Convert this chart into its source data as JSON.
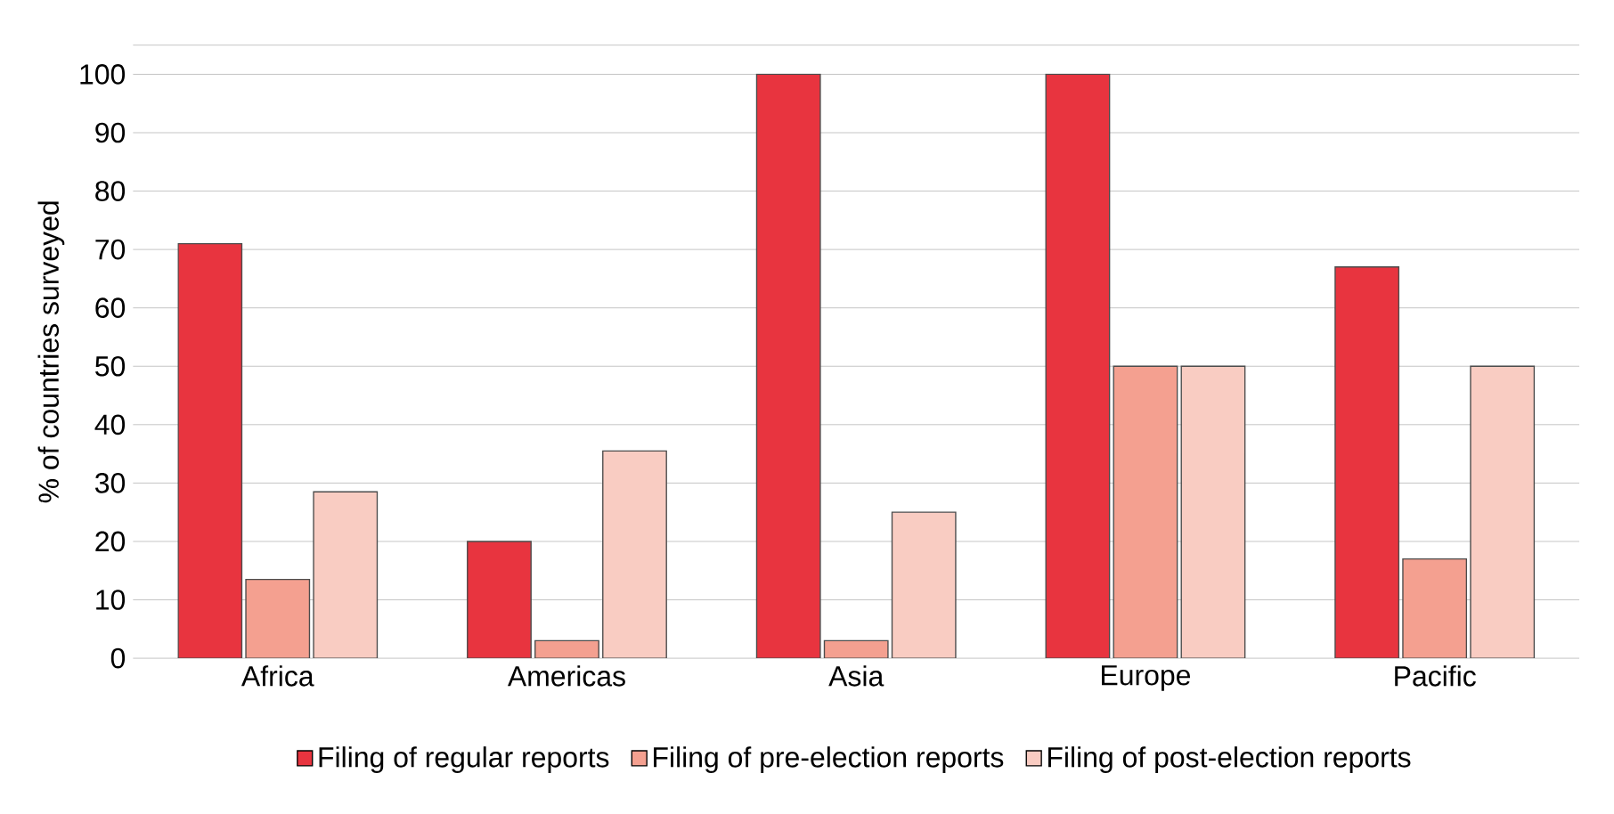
{
  "chart_data": {
    "type": "bar",
    "ylabel": "% of countries surveyed",
    "categories": [
      "Africa",
      "Americas",
      "Asia",
      "Europe",
      "Pacific"
    ],
    "series": [
      {
        "name": "Filing of regular reports",
        "color": "#e8343f",
        "values": [
          71,
          20,
          100,
          100,
          67
        ]
      },
      {
        "name": "Filing of pre-election reports",
        "color": "#f4a090",
        "values": [
          13.5,
          3,
          3,
          50,
          17
        ]
      },
      {
        "name": "Filing of post-election reports",
        "color": "#f9ccc2",
        "values": [
          28.5,
          35.5,
          25,
          50,
          50
        ]
      }
    ],
    "ylim": [
      0,
      105
    ],
    "yticks": [
      0,
      10,
      20,
      30,
      40,
      50,
      60,
      70,
      80,
      90,
      100,
      {
        "value": 105,
        "label": null
      }
    ],
    "grid": "y",
    "legend": "bottom"
  }
}
